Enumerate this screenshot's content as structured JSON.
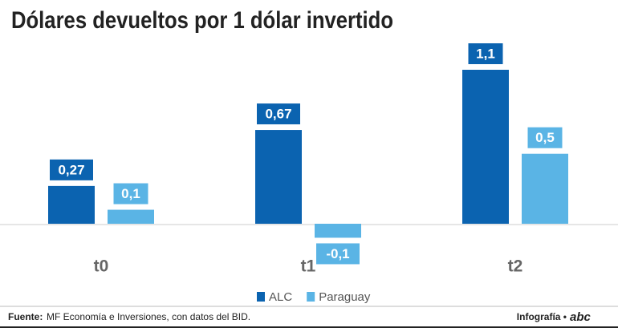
{
  "chart_data": {
    "type": "bar",
    "title": "Dólares devueltos por 1 dólar invertido",
    "categories": [
      "t0",
      "t1",
      "t2"
    ],
    "series": [
      {
        "name": "ALC",
        "color": "#0b63b0",
        "values": [
          0.27,
          0.67,
          1.1
        ],
        "value_labels": [
          "0,27",
          "0,67",
          "1,1"
        ]
      },
      {
        "name": "Paraguay",
        "color": "#5ab4e5",
        "values": [
          0.1,
          -0.1,
          0.5
        ],
        "value_labels": [
          "0,1",
          "-0,1",
          "0,5"
        ]
      }
    ],
    "legend": "bottom"
  },
  "footer": {
    "source_label": "Fuente:",
    "source_text": "MF Economía e Inversiones, con datos del BID.",
    "credit": "Infografía •",
    "logo": "abc"
  }
}
